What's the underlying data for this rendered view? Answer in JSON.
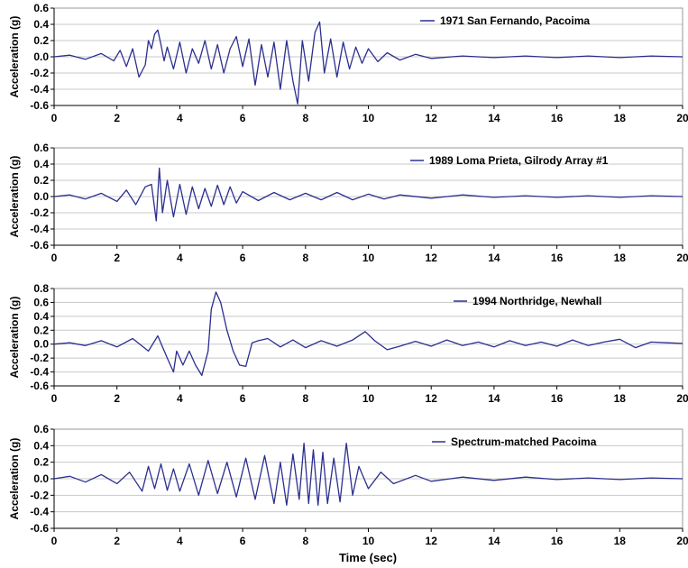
{
  "figure": {
    "xlabel": "Time (sec)"
  },
  "colors": {
    "trace": "#2b2f8f",
    "grid": "#c8c8c8",
    "axis": "#000000"
  },
  "chart_data": [
    {
      "type": "line",
      "title": "",
      "legend": "1971 San Fernando, Pacoima",
      "legend_placement": "top-right",
      "ylabel": "Acceleration (g)",
      "xlabel": "",
      "xlim": [
        0,
        20
      ],
      "ylim": [
        -0.6,
        0.6
      ],
      "x_ticks": [
        "0",
        "2",
        "4",
        "6",
        "8",
        "10",
        "12",
        "14",
        "16",
        "18",
        "20"
      ],
      "y_ticks": [
        "0.6",
        "0.4",
        "0.2",
        "0.0",
        "-0.2",
        "-0.4",
        "-0.6"
      ],
      "grid": true,
      "series": [
        {
          "name": "1971 San Fernando, Pacoima",
          "x": [
            0,
            0.5,
            1,
            1.5,
            1.9,
            2.1,
            2.3,
            2.5,
            2.7,
            2.9,
            3.0,
            3.1,
            3.2,
            3.3,
            3.4,
            3.5,
            3.6,
            3.8,
            4.0,
            4.2,
            4.4,
            4.6,
            4.8,
            5.0,
            5.2,
            5.4,
            5.6,
            5.8,
            6.0,
            6.2,
            6.4,
            6.6,
            6.8,
            7.0,
            7.2,
            7.4,
            7.6,
            7.75,
            7.9,
            8.1,
            8.3,
            8.45,
            8.6,
            8.8,
            9.0,
            9.2,
            9.4,
            9.6,
            9.8,
            10.0,
            10.3,
            10.6,
            11,
            11.5,
            12,
            13,
            14,
            15,
            16,
            17,
            18,
            19,
            20
          ],
          "y": [
            0,
            0.02,
            -0.03,
            0.04,
            -0.05,
            0.08,
            -0.12,
            0.1,
            -0.25,
            -0.1,
            0.2,
            0.1,
            0.28,
            0.33,
            0.15,
            -0.05,
            0.12,
            -0.15,
            0.18,
            -0.2,
            0.1,
            -0.08,
            0.2,
            -0.15,
            0.15,
            -0.2,
            0.1,
            0.25,
            -0.12,
            0.22,
            -0.35,
            0.15,
            -0.25,
            0.18,
            -0.4,
            0.2,
            -0.3,
            -0.58,
            0.2,
            -0.3,
            0.3,
            0.43,
            -0.2,
            0.22,
            -0.25,
            0.18,
            -0.15,
            0.12,
            -0.08,
            0.1,
            -0.06,
            0.05,
            -0.04,
            0.03,
            -0.02,
            0.01,
            -0.01,
            0.01,
            -0.01,
            0.01,
            -0.01,
            0.01,
            0
          ]
        }
      ]
    },
    {
      "type": "line",
      "title": "",
      "legend": "1989 Loma Prieta, Gilrody Array #1",
      "legend_placement": "top-right",
      "ylabel": "Acceleration (g)",
      "xlabel": "",
      "xlim": [
        0,
        20
      ],
      "ylim": [
        -0.6,
        0.6
      ],
      "x_ticks": [
        "0",
        "2",
        "4",
        "6",
        "8",
        "10",
        "12",
        "14",
        "16",
        "18",
        "20"
      ],
      "y_ticks": [
        "0.6",
        "0.4",
        "0.2",
        "0.0",
        "-0.2",
        "-0.4",
        "-0.6"
      ],
      "grid": true,
      "series": [
        {
          "name": "1989 Loma Prieta, Gilrody Array #1",
          "x": [
            0,
            0.5,
            1,
            1.5,
            2.0,
            2.3,
            2.6,
            2.9,
            3.1,
            3.25,
            3.35,
            3.45,
            3.6,
            3.8,
            4.0,
            4.2,
            4.4,
            4.6,
            4.8,
            5.0,
            5.2,
            5.4,
            5.6,
            5.8,
            6.0,
            6.5,
            7,
            7.5,
            8,
            8.5,
            9,
            9.5,
            10,
            10.5,
            11,
            12,
            13,
            14,
            15,
            16,
            17,
            18,
            19,
            20
          ],
          "y": [
            0,
            0.02,
            -0.03,
            0.04,
            -0.06,
            0.08,
            -0.1,
            0.12,
            0.15,
            -0.3,
            0.35,
            -0.2,
            0.2,
            -0.25,
            0.15,
            -0.22,
            0.12,
            -0.15,
            0.1,
            -0.12,
            0.14,
            -0.1,
            0.12,
            -0.08,
            0.06,
            -0.05,
            0.05,
            -0.04,
            0.04,
            -0.04,
            0.05,
            -0.04,
            0.03,
            -0.03,
            0.02,
            -0.02,
            0.02,
            -0.01,
            0.01,
            -0.01,
            0.01,
            -0.01,
            0.01,
            0
          ]
        }
      ]
    },
    {
      "type": "line",
      "title": "",
      "legend": "1994 Northridge, Newhall",
      "legend_placement": "top-right",
      "ylabel": "Acceleration (g)",
      "xlabel": "",
      "xlim": [
        0,
        20
      ],
      "ylim": [
        -0.6,
        0.8
      ],
      "x_ticks": [
        "0",
        "2",
        "4",
        "6",
        "8",
        "10",
        "12",
        "14",
        "16",
        "18",
        "20"
      ],
      "y_ticks": [
        "0.8",
        "0.6",
        "0.4",
        "0.2",
        "0.0",
        "-0.2",
        "-0.4",
        "-0.6"
      ],
      "grid": true,
      "series": [
        {
          "name": "1994 Northridge, Newhall",
          "x": [
            0,
            0.5,
            1,
            1.5,
            2.0,
            2.5,
            3.0,
            3.3,
            3.6,
            3.8,
            3.9,
            4.1,
            4.3,
            4.5,
            4.7,
            4.9,
            5.0,
            5.15,
            5.3,
            5.5,
            5.7,
            5.9,
            6.1,
            6.3,
            6.5,
            6.8,
            7.2,
            7.6,
            8.0,
            8.5,
            9.0,
            9.5,
            9.9,
            10.2,
            10.6,
            11,
            11.5,
            12,
            12.5,
            13,
            13.5,
            14,
            14.5,
            15,
            15.5,
            16,
            16.5,
            17,
            17.5,
            18,
            18.5,
            19,
            19.5,
            20
          ],
          "y": [
            0,
            0.02,
            -0.02,
            0.05,
            -0.04,
            0.08,
            -0.1,
            0.12,
            -0.2,
            -0.4,
            -0.1,
            -0.3,
            -0.1,
            -0.3,
            -0.45,
            -0.1,
            0.5,
            0.75,
            0.6,
            0.2,
            -0.1,
            -0.3,
            -0.32,
            0.02,
            0.05,
            0.08,
            -0.04,
            0.06,
            -0.05,
            0.05,
            -0.03,
            0.06,
            0.18,
            0.05,
            -0.08,
            -0.03,
            0.04,
            -0.03,
            0.06,
            -0.02,
            0.03,
            -0.04,
            0.05,
            -0.02,
            0.03,
            -0.03,
            0.06,
            -0.02,
            0.03,
            0.07,
            -0.05,
            0.03,
            0.02,
            0.01
          ]
        }
      ]
    },
    {
      "type": "line",
      "title": "",
      "legend": "Spectrum-matched Pacoima",
      "legend_placement": "top-right",
      "ylabel": "Acceleration (g)",
      "xlabel": "Time (sec)",
      "xlim": [
        0,
        20
      ],
      "ylim": [
        -0.6,
        0.6
      ],
      "x_ticks": [
        "0",
        "2",
        "4",
        "6",
        "8",
        "10",
        "12",
        "14",
        "16",
        "18",
        "20"
      ],
      "y_ticks": [
        "0.6",
        "0.4",
        "0.2",
        "0.0",
        "-0.2",
        "-0.4",
        "-0.6"
      ],
      "grid": true,
      "series": [
        {
          "name": "Spectrum-matched Pacoima",
          "x": [
            0,
            0.5,
            1,
            1.5,
            2.0,
            2.4,
            2.8,
            3.0,
            3.2,
            3.4,
            3.6,
            3.8,
            4.0,
            4.3,
            4.6,
            4.9,
            5.2,
            5.5,
            5.8,
            6.1,
            6.4,
            6.7,
            7.0,
            7.2,
            7.4,
            7.6,
            7.8,
            7.95,
            8.1,
            8.25,
            8.4,
            8.55,
            8.7,
            8.9,
            9.1,
            9.3,
            9.5,
            9.7,
            10.0,
            10.4,
            10.8,
            11.5,
            12,
            13,
            14,
            15,
            16,
            17,
            18,
            19,
            20
          ],
          "y": [
            0,
            0.03,
            -0.04,
            0.05,
            -0.06,
            0.08,
            -0.15,
            0.15,
            -0.12,
            0.18,
            -0.14,
            0.12,
            -0.15,
            0.18,
            -0.2,
            0.22,
            -0.18,
            0.2,
            -0.22,
            0.25,
            -0.25,
            0.28,
            -0.3,
            0.2,
            -0.32,
            0.3,
            -0.25,
            0.43,
            -0.3,
            0.35,
            -0.32,
            0.32,
            -0.3,
            0.25,
            -0.28,
            0.43,
            -0.2,
            0.15,
            -0.12,
            0.08,
            -0.06,
            0.04,
            -0.03,
            0.02,
            -0.02,
            0.02,
            -0.01,
            0.01,
            -0.01,
            0.01,
            0
          ]
        }
      ]
    }
  ]
}
